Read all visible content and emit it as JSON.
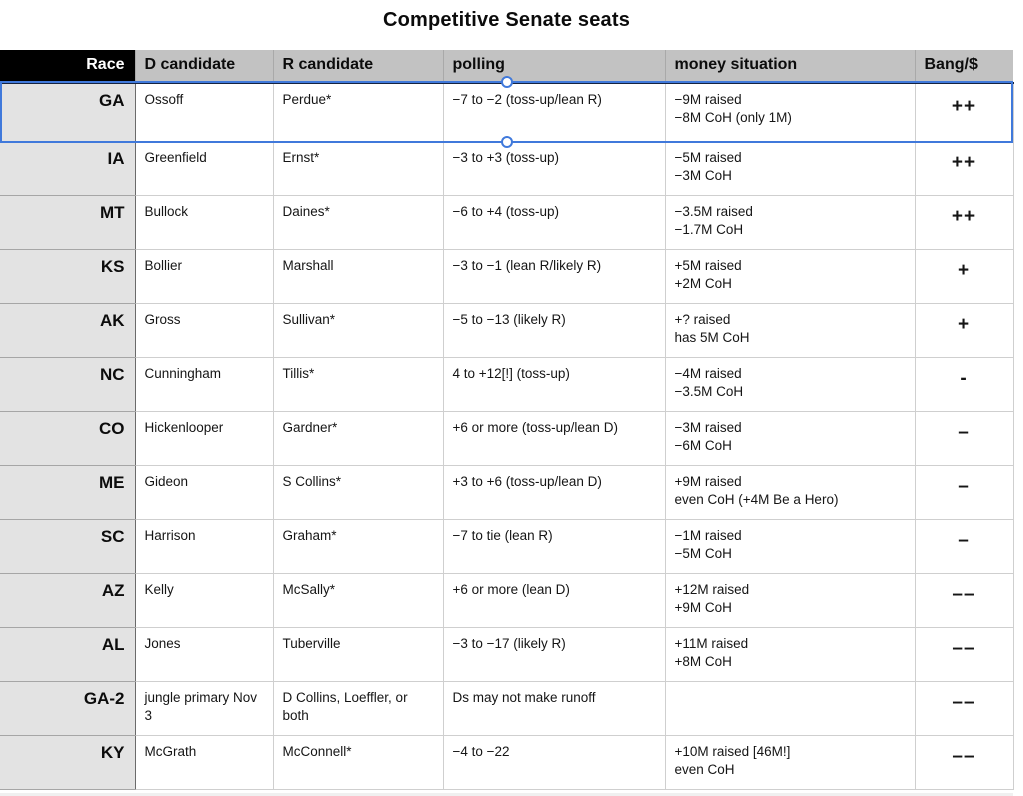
{
  "title": "Competitive Senate seats",
  "colors": {
    "selection_blue": "#4079db",
    "header_bg": "#c2c2c2",
    "race_header_bg": "#000000",
    "race_col_bg": "#e3e3e3"
  },
  "table": {
    "columns": [
      {
        "key": "race",
        "label": "Race"
      },
      {
        "key": "d",
        "label": "D candidate"
      },
      {
        "key": "r",
        "label": "R candidate"
      },
      {
        "key": "polling",
        "label": "polling"
      },
      {
        "key": "money",
        "label": "money situation"
      },
      {
        "key": "bang",
        "label": "Bang/$"
      }
    ],
    "rows": [
      {
        "race": "GA",
        "d": "Ossoff",
        "r": "Perdue*",
        "polling": "−7 to −2 (toss-up/lean R)",
        "money": "−9M raised\n−8M CoH (only 1M)",
        "bang": "++",
        "selected": true
      },
      {
        "race": "IA",
        "d": "Greenfield",
        "r": "Ernst*",
        "polling": "−3 to +3 (toss-up)",
        "money": "−5M raised\n−3M CoH",
        "bang": "++"
      },
      {
        "race": "MT",
        "d": "Bullock",
        "r": "Daines*",
        "polling": "−6 to +4 (toss-up)",
        "money": "−3.5M raised\n−1.7M CoH",
        "bang": "++"
      },
      {
        "race": "KS",
        "d": "Bollier",
        "r": "Marshall",
        "polling": "−3 to −1 (lean R/likely R)",
        "money": "+5M raised\n+2M CoH",
        "bang": "+"
      },
      {
        "race": "AK",
        "d": "Gross",
        "r": "Sullivan*",
        "polling": "−5 to −13 (likely R)",
        "money": "+? raised\nhas 5M CoH",
        "bang": "+"
      },
      {
        "race": "NC",
        "d": "Cunningham",
        "r": "Tillis*",
        "polling": "4 to +12[!] (toss-up)",
        "money": "−4M raised\n−3.5M CoH",
        "bang": "-"
      },
      {
        "race": "CO",
        "d": "Hickenlooper",
        "r": "Gardner*",
        "polling": "+6 or more (toss-up/lean D)",
        "money": "−3M raised\n−6M CoH",
        "bang": "–"
      },
      {
        "race": "ME",
        "d": "Gideon",
        "r": "S Collins*",
        "polling": "+3 to +6 (toss-up/lean D)",
        "money": "+9M raised\neven CoH (+4M Be a Hero)",
        "bang": "–"
      },
      {
        "race": "SC",
        "d": "Harrison",
        "r": "Graham*",
        "polling": "−7 to tie (lean R)",
        "money": "−1M raised\n−5M CoH",
        "bang": "–"
      },
      {
        "race": "AZ",
        "d": "Kelly",
        "r": "McSally*",
        "polling": "+6 or more (lean D)",
        "money": "+12M raised\n+9M CoH",
        "bang": "––"
      },
      {
        "race": "AL",
        "d": "Jones",
        "r": "Tuberville",
        "polling": "−3 to −17 (likely R)",
        "money": "+11M raised\n+8M CoH",
        "bang": "––"
      },
      {
        "race": "GA-2",
        "d": "jungle primary Nov 3",
        "r": "D Collins, Loeffler, or both",
        "polling": "Ds may not make runoff",
        "money": "",
        "bang": "––"
      },
      {
        "race": "KY",
        "d": "McGrath",
        "r": "McConnell*",
        "polling": "−4 to −22",
        "money": "+10M raised [46M!]\neven CoH",
        "bang": "––"
      }
    ]
  }
}
